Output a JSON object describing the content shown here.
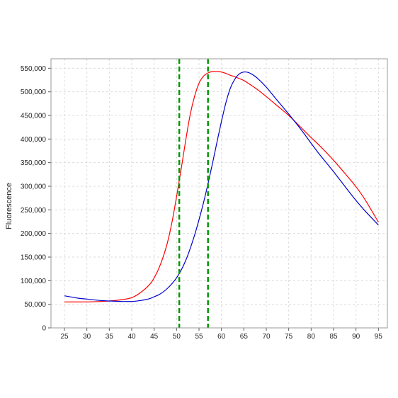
{
  "chart_data": {
    "type": "line",
    "title": "",
    "xlabel": "",
    "ylabel": "Fluorescence",
    "xlim": [
      22,
      97
    ],
    "ylim": [
      0,
      570000
    ],
    "x_ticks": [
      25,
      30,
      35,
      40,
      45,
      50,
      55,
      60,
      65,
      70,
      75,
      80,
      85,
      90,
      95
    ],
    "x_tick_labels": [
      "25",
      "30",
      "35",
      "40",
      "45",
      "50",
      "55",
      "60",
      "65",
      "70",
      "75",
      "80",
      "85",
      "90",
      "95"
    ],
    "y_ticks": [
      0,
      50000,
      100000,
      150000,
      200000,
      250000,
      300000,
      350000,
      400000,
      450000,
      500000,
      550000
    ],
    "y_tick_labels": [
      "0",
      "50,000",
      "100,000",
      "150,000",
      "200,000",
      "250,000",
      "300,000",
      "350,000",
      "400,000",
      "450,000",
      "500,000",
      "550,000"
    ],
    "grid": true,
    "legend": "none",
    "series": [
      {
        "color": "#ff0000",
        "x": [
          25,
          30,
          33,
          35,
          38,
          40,
          42,
          44,
          45,
          46,
          47,
          48,
          49,
          50,
          51,
          52,
          53,
          54,
          55,
          56,
          57,
          58,
          59,
          60,
          61,
          62,
          63,
          64,
          65,
          66,
          68,
          70,
          72,
          75,
          78,
          80,
          82,
          85,
          88,
          90,
          92,
          95
        ],
        "y": [
          55000,
          55000,
          56000,
          57000,
          60000,
          64000,
          75000,
          92000,
          106000,
          125000,
          150000,
          182000,
          225000,
          278000,
          335000,
          395000,
          450000,
          490000,
          518000,
          533000,
          540000,
          543000,
          543000,
          542000,
          539000,
          535000,
          532000,
          528000,
          524000,
          518000,
          505000,
          490000,
          474000,
          450000,
          422000,
          403000,
          385000,
          355000,
          322000,
          299000,
          272000,
          224000
        ]
      },
      {
        "color": "#0000cc",
        "x": [
          25,
          28,
          30,
          33,
          35,
          38,
          40,
          42,
          44,
          45,
          46,
          47,
          48,
          49,
          50,
          51,
          52,
          53,
          54,
          55,
          56,
          57,
          58,
          59,
          60,
          61,
          62,
          63,
          64,
          65,
          66,
          67,
          68,
          70,
          72,
          75,
          78,
          80,
          82,
          85,
          88,
          90,
          92,
          95
        ],
        "y": [
          68000,
          63000,
          61000,
          58000,
          57000,
          56000,
          56000,
          58000,
          62000,
          66000,
          70000,
          76000,
          84000,
          94000,
          106000,
          122000,
          142000,
          167000,
          196000,
          229000,
          265000,
          305000,
          348000,
          393000,
          437000,
          477000,
          508000,
          527000,
          538000,
          542000,
          541000,
          536000,
          529000,
          510000,
          487000,
          453000,
          417000,
          391000,
          366000,
          331000,
          294000,
          270000,
          248000,
          218000
        ]
      }
    ],
    "vertical_markers": [
      {
        "x": 50.6,
        "color": "#009900",
        "style": "dashed"
      },
      {
        "x": 57.0,
        "color": "#009900",
        "style": "dashed"
      }
    ]
  }
}
